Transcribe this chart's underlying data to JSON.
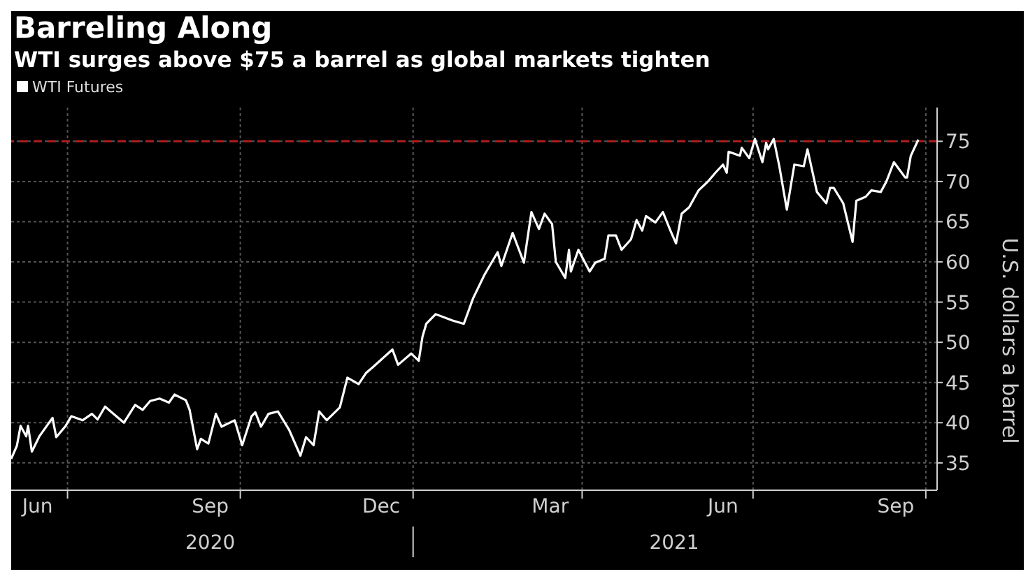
{
  "chart_data": {
    "type": "line",
    "title": "Barreling Along",
    "subtitle": "WTI surges above $75 a barrel as global markets tighten",
    "ylabel": "U.S. dollars a barrel",
    "x": [
      "2020-06-01",
      "2020-06-04",
      "2020-06-06",
      "2020-06-09",
      "2020-06-10",
      "2020-06-12",
      "2020-06-16",
      "2020-06-23",
      "2020-06-25",
      "2020-06-30",
      "2020-07-03",
      "2020-07-09",
      "2020-07-14",
      "2020-07-17",
      "2020-07-21",
      "2020-07-24",
      "2020-07-31",
      "2020-08-06",
      "2020-08-10",
      "2020-08-14",
      "2020-08-19",
      "2020-08-24",
      "2020-08-27",
      "2020-09-02",
      "2020-09-04",
      "2020-09-08",
      "2020-09-10",
      "2020-09-14",
      "2020-09-18",
      "2020-09-21",
      "2020-09-28",
      "2020-10-02",
      "2020-10-07",
      "2020-10-09",
      "2020-10-12",
      "2020-10-16",
      "2020-10-21",
      "2020-10-27",
      "2020-11-02",
      "2020-11-05",
      "2020-11-09",
      "2020-11-12",
      "2020-11-16",
      "2020-11-23",
      "2020-11-27",
      "2020-12-03",
      "2020-12-07",
      "2020-12-11",
      "2020-12-21",
      "2020-12-24",
      "2020-12-31",
      "2021-01-04",
      "2021-01-06",
      "2021-01-08",
      "2021-01-13",
      "2021-01-22",
      "2021-01-28",
      "2021-02-02",
      "2021-02-08",
      "2021-02-15",
      "2021-02-17",
      "2021-02-23",
      "2021-03-01",
      "2021-03-05",
      "2021-03-09",
      "2021-03-12",
      "2021-03-16",
      "2021-03-18",
      "2021-03-23",
      "2021-03-25",
      "2021-03-26",
      "2021-03-30",
      "2021-04-05",
      "2021-04-08",
      "2021-04-13",
      "2021-04-15",
      "2021-04-19",
      "2021-04-22",
      "2021-04-27",
      "2021-04-30",
      "2021-05-03",
      "2021-05-05",
      "2021-05-10",
      "2021-05-14",
      "2021-05-18",
      "2021-05-21",
      "2021-05-24",
      "2021-05-28",
      "2021-06-02",
      "2021-06-07",
      "2021-06-11",
      "2021-06-15",
      "2021-06-17",
      "2021-06-18",
      "2021-06-24",
      "2021-06-25",
      "2021-06-29",
      "2021-07-02",
      "2021-07-06",
      "2021-07-08",
      "2021-07-09",
      "2021-07-12",
      "2021-07-15",
      "2021-07-19",
      "2021-07-23",
      "2021-07-28",
      "2021-07-30",
      "2021-08-04",
      "2021-08-09",
      "2021-08-11",
      "2021-08-13",
      "2021-08-18",
      "2021-08-23",
      "2021-08-25",
      "2021-08-30",
      "2021-09-02",
      "2021-09-07",
      "2021-09-10",
      "2021-09-14",
      "2021-09-20",
      "2021-09-21",
      "2021-09-23",
      "2021-09-27"
    ],
    "series": [
      {
        "name": "WTI Futures",
        "color": "#ffffff",
        "values": [
          35.5,
          37.1,
          39.6,
          38.3,
          39.6,
          36.4,
          38.3,
          40.6,
          38.2,
          39.6,
          40.8,
          40.3,
          41.1,
          40.4,
          42.0,
          41.4,
          40.0,
          42.2,
          41.6,
          42.7,
          43.0,
          42.5,
          43.5,
          42.8,
          41.6,
          36.7,
          38.0,
          37.4,
          41.1,
          39.5,
          40.3,
          37.2,
          40.8,
          41.3,
          39.5,
          41.1,
          41.4,
          39.1,
          35.9,
          38.2,
          37.2,
          41.4,
          40.3,
          41.9,
          45.6,
          44.8,
          46.2,
          47.0,
          49.1,
          47.2,
          48.6,
          47.7,
          50.7,
          52.3,
          53.5,
          52.7,
          52.3,
          55.5,
          58.4,
          61.2,
          59.5,
          63.6,
          59.9,
          66.2,
          64.1,
          66.0,
          64.7,
          60.0,
          58.0,
          61.5,
          58.8,
          61.5,
          58.8,
          59.9,
          60.4,
          63.3,
          63.3,
          61.5,
          62.8,
          65.2,
          63.9,
          65.7,
          64.9,
          66.2,
          63.9,
          62.3,
          66.0,
          66.8,
          68.9,
          70.0,
          71.1,
          72.1,
          71.1,
          73.7,
          73.2,
          74.2,
          72.9,
          75.3,
          72.4,
          74.8,
          74.0,
          75.3,
          71.9,
          66.5,
          72.1,
          71.9,
          74.0,
          68.7,
          67.3,
          69.2,
          69.2,
          67.3,
          62.5,
          67.6,
          68.1,
          68.9,
          68.7,
          70.0,
          72.4,
          70.5,
          70.5,
          73.2,
          75.2
        ]
      }
    ],
    "xlim": [
      "2020-06-01",
      "2021-10-07"
    ],
    "xticks": [
      {
        "value": "2020-06-15",
        "label": "Jun"
      },
      {
        "value": "2020-07-01",
        "label": null
      },
      {
        "value": "2020-09-15",
        "label": "Sep"
      },
      {
        "value": "2020-10-01",
        "label": null
      },
      {
        "value": "2020-12-15",
        "label": "Dec"
      },
      {
        "value": "2021-01-01",
        "label": null
      },
      {
        "value": "2021-03-15",
        "label": "Mar"
      },
      {
        "value": "2021-04-01",
        "label": null
      },
      {
        "value": "2021-06-15",
        "label": "Jun"
      },
      {
        "value": "2021-07-01",
        "label": null
      },
      {
        "value": "2021-09-15",
        "label": "Sep"
      },
      {
        "value": "2021-10-01",
        "label": null
      }
    ],
    "x2lim": [
      "2020-06-01",
      "2021-10-07"
    ],
    "x2ticks": [
      {
        "value": "2020-09-15",
        "label": "2020"
      },
      {
        "value": "2021-01-01",
        "label": null
      },
      {
        "value": "2021-05-20",
        "label": "2021"
      }
    ],
    "ylim": [
      31.6,
      79.2
    ],
    "yticks": [
      35,
      40,
      45,
      50,
      55,
      60,
      65,
      70,
      75
    ],
    "ref_lines": [
      {
        "axis": "y",
        "value": 75,
        "color": "#b01e1e",
        "line_style": "dashed"
      }
    ],
    "grid": true,
    "legend": "top left",
    "marker": "none",
    "line_style": "solid"
  }
}
